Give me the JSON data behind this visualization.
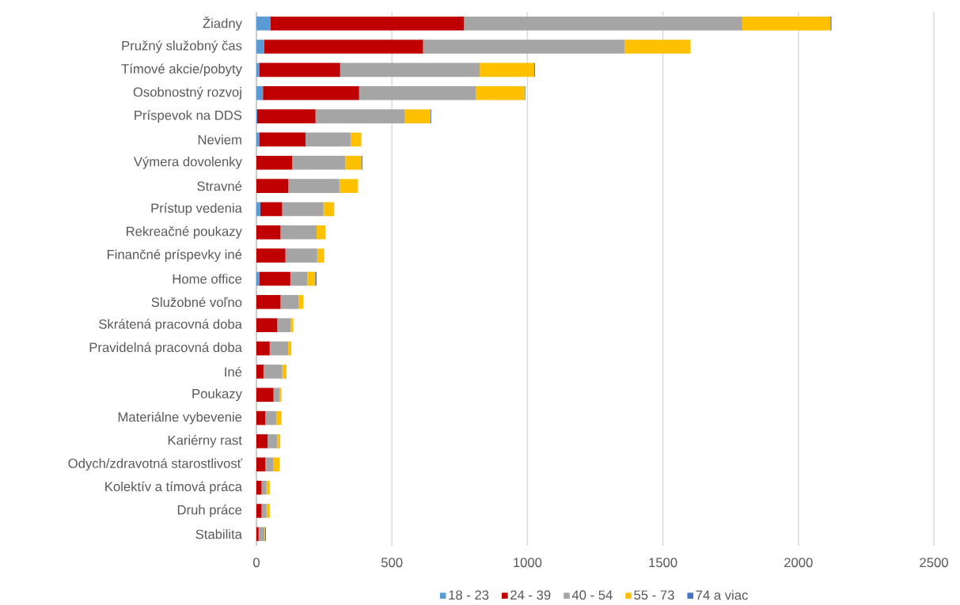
{
  "chart_data": {
    "type": "bar",
    "orientation": "horizontal",
    "stacked": true,
    "categories": [
      "Žiadny",
      "Pružný služobný čas",
      "Tímové akcie/pobyty",
      "Osobnostný rozvoj",
      "Príspevok na DDS",
      "Neviem",
      "Výmera dovolenky",
      "Stravné",
      "Prístup vedenia",
      "Rekreačné poukazy",
      "Finančné príspevky iné",
      "Home office",
      "Služobné voľno",
      "Skrátená pracovná doba",
      "Pravidelná pracovná doba",
      "Iné",
      "Poukazy",
      "Materiálne vybevenie",
      "Kariérny rast",
      "Odych/zdravotná starostlivosť",
      "Kolektív a tímová práca",
      "Druh práce",
      "Stabilita"
    ],
    "series": [
      {
        "name": "18 - 23",
        "color": "#5b9bd5",
        "values": [
          51,
          29,
          10,
          24,
          3,
          10,
          0,
          0,
          14,
          0,
          0,
          11,
          0,
          0,
          0,
          0,
          0,
          0,
          0,
          0,
          0,
          0,
          0
        ]
      },
      {
        "name": "24 - 39",
        "color": "#c00000",
        "values": [
          715,
          586,
          299,
          355,
          215,
          171,
          132,
          118,
          81,
          89,
          107,
          114,
          89,
          77,
          49,
          26,
          63,
          33,
          41,
          33,
          19,
          19,
          8
        ]
      },
      {
        "name": "40 - 54",
        "color": "#a5a5a5",
        "values": [
          1027,
          743,
          515,
          431,
          330,
          166,
          196,
          188,
          152,
          133,
          117,
          63,
          66,
          49,
          68,
          69,
          23,
          41,
          36,
          30,
          18,
          18,
          22
        ]
      },
      {
        "name": "55 - 73",
        "color": "#ffc000",
        "values": [
          325,
          244,
          201,
          179,
          94,
          40,
          59,
          69,
          40,
          32,
          26,
          29,
          18,
          10,
          12,
          16,
          6,
          18,
          11,
          23,
          12,
          12,
          2
        ]
      },
      {
        "name": "74 a viac",
        "color": "#4472c4",
        "values": [
          4,
          0,
          3,
          3,
          3,
          0,
          4,
          0,
          0,
          0,
          0,
          5,
          0,
          0,
          0,
          0,
          0,
          0,
          0,
          0,
          0,
          0,
          3
        ]
      }
    ],
    "xlim": [
      0,
      2500
    ],
    "xticks": [
      0,
      500,
      1000,
      1500,
      2000,
      2500
    ],
    "grid": "x",
    "legend": "bottom"
  }
}
